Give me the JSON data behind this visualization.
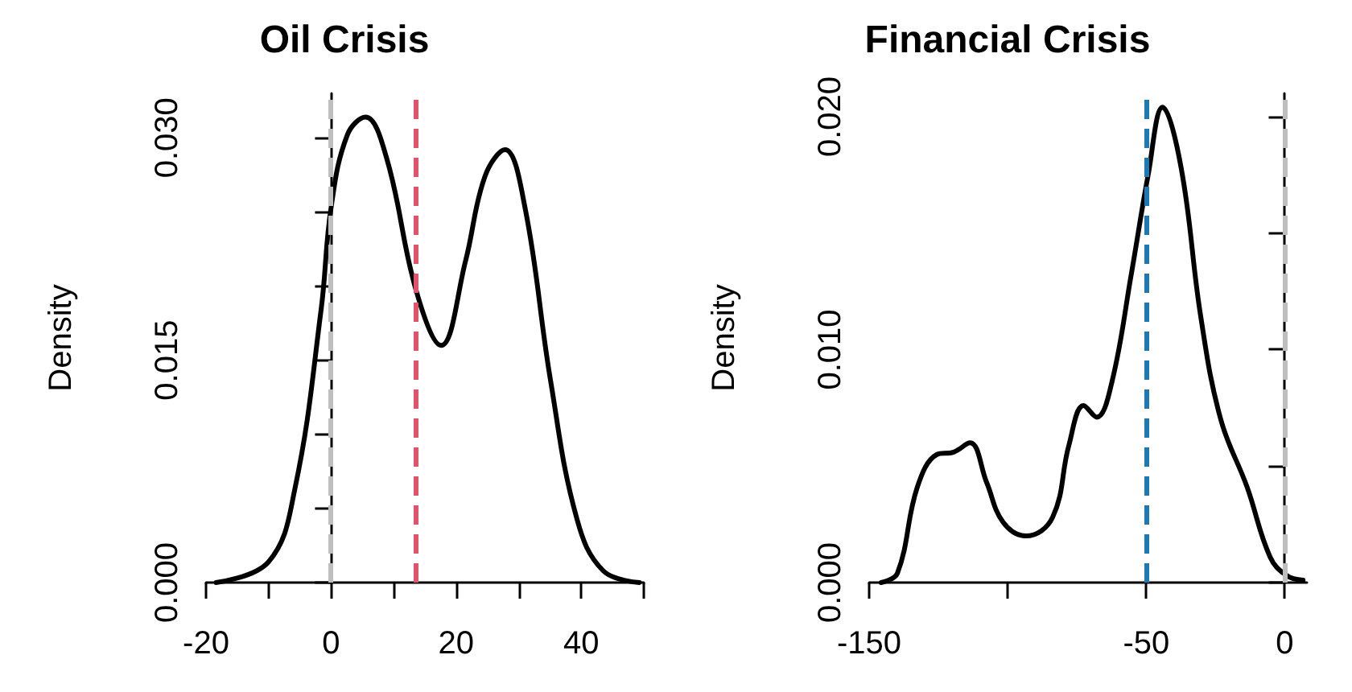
{
  "chart_data": [
    {
      "type": "line",
      "title": "Oil Crisis",
      "ylabel": "Density",
      "marker": "none",
      "line_style": "solid",
      "grid": false,
      "xlim": [
        -20,
        50
      ],
      "xticks": [
        -20,
        {
          "value": -10,
          "label": null
        },
        0,
        {
          "value": 10,
          "label": null
        },
        20,
        {
          "value": 30,
          "label": null
        },
        40,
        {
          "value": 50,
          "label": null
        }
      ],
      "ylim": [
        0,
        0.033
      ],
      "yticks": [
        {
          "value": 0,
          "label": "0.000"
        },
        {
          "value": 0.005,
          "label": null
        },
        {
          "value": 0.01,
          "label": null
        },
        {
          "value": 0.015,
          "label": "0.015"
        },
        {
          "value": 0.02,
          "label": null
        },
        {
          "value": 0.025,
          "label": null
        },
        {
          "value": 0.03,
          "label": "0.030"
        }
      ],
      "series": [
        {
          "color": "#000000",
          "x": [
            -18.4,
            -10,
            -5.8,
            -1.6,
            0,
            2.6,
            5.5,
            8.9,
            13.6,
            17.6,
            21.5,
            24.6,
            27.8,
            31,
            35.1,
            39.3,
            43.5,
            49.3
          ],
          "values": [
            0,
            0.0014,
            0.0063,
            0.0184,
            0.0253,
            0.0302,
            0.0314,
            0.0286,
            0.0197,
            0.016,
            0.0217,
            0.0274,
            0.0292,
            0.0253,
            0.0136,
            0.0043,
            0.0008,
            0
          ]
        }
      ],
      "ref_lines": [
        {
          "axis": "x",
          "value": 0,
          "color": "#bebebe",
          "line_style": "dashed"
        },
        {
          "axis": "x",
          "value": 13.6,
          "color": "#df536b",
          "line_style": "dashed"
        }
      ]
    },
    {
      "type": "line",
      "title": "Financial Crisis",
      "ylabel": "Density",
      "marker": "none",
      "line_style": "solid",
      "grid": false,
      "xlim": [
        -150,
        8
      ],
      "xticks": [
        -150,
        {
          "value": -100,
          "label": null
        },
        -50,
        0
      ],
      "ylim": [
        0,
        0.021
      ],
      "yticks": [
        {
          "value": 0,
          "label": "0.000"
        },
        {
          "value": 0.005,
          "label": null
        },
        {
          "value": 0.01,
          "label": "0.010"
        },
        {
          "value": 0.015,
          "label": null
        },
        {
          "value": 0.02,
          "label": "0.020"
        }
      ],
      "series": [
        {
          "color": "#000000",
          "x": [
            -145.7,
            -139.8,
            -132.6,
            -125.5,
            -119.5,
            -113.6,
            -107.6,
            -101.7,
            -93.4,
            -83.8,
            -77.9,
            -72.6,
            -67.9,
            -62.4,
            -55.3,
            -49.3,
            -44.1,
            -37.4,
            -30.3,
            -23.1,
            -13.6,
            -5.3,
            0.7,
            6.6
          ],
          "values": [
            0,
            0.0004,
            0.0041,
            0.0055,
            0.0056,
            0.006,
            0.0043,
            0.0026,
            0.002,
            0.0028,
            0.0059,
            0.0076,
            0.0071,
            0.0086,
            0.0133,
            0.0175,
            0.0204,
            0.0178,
            0.0114,
            0.007,
            0.0041,
            0.0011,
            0.0003,
            0.0001
          ]
        }
      ],
      "ref_lines": [
        {
          "axis": "x",
          "value": -50,
          "color": "#1f78b4",
          "line_style": "dashed"
        },
        {
          "axis": "x",
          "value": 0,
          "color": "#bebebe",
          "line_style": "dashed"
        }
      ]
    }
  ]
}
